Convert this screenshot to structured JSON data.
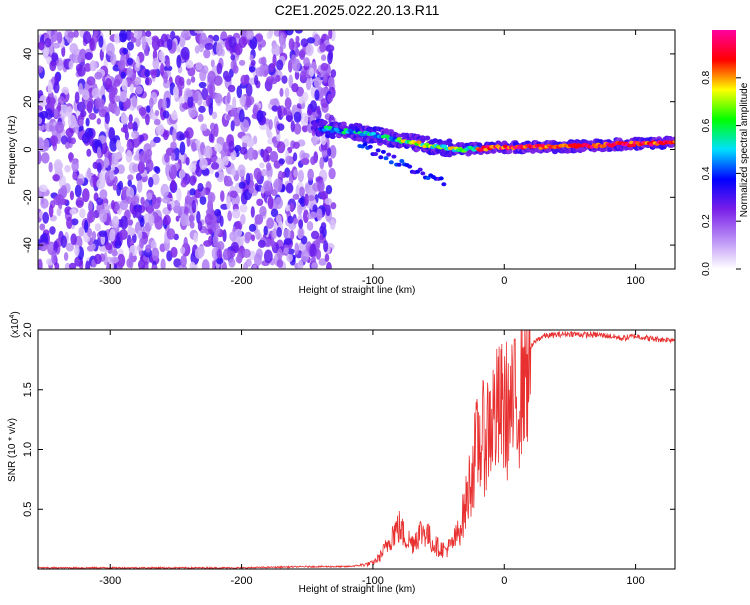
{
  "page": {
    "title": "C2E1.2025.022.20.13.R11"
  },
  "chart_data": [
    {
      "type": "heatmap",
      "title": "C2E1.2025.022.20.13.R11",
      "xlabel": "Height of straight line (km)",
      "ylabel": "Frequency (Hz)",
      "xlim": [
        -355,
        130
      ],
      "ylim": [
        -50,
        50
      ],
      "xticks": [
        {
          "v": -300,
          "label": "-300"
        },
        {
          "v": -200,
          "label": "-200"
        },
        {
          "v": -100,
          "label": "-100"
        },
        {
          "v": 0,
          "label": "0"
        },
        {
          "v": 100,
          "label": "100"
        }
      ],
      "yticks": [
        {
          "v": -40,
          "label": "-40"
        },
        {
          "v": -20,
          "label": "-20"
        },
        {
          "v": 0,
          "label": "0"
        },
        {
          "v": 20,
          "label": "20"
        },
        {
          "v": 40,
          "label": "40"
        }
      ],
      "ridge": [
        {
          "x": -140,
          "y": 9
        },
        {
          "x": -110,
          "y": 7
        },
        {
          "x": -90,
          "y": 5
        },
        {
          "x": -70,
          "y": 3
        },
        {
          "x": -50,
          "y": 1
        },
        {
          "x": -30,
          "y": 0
        },
        {
          "x": 0,
          "y": 1
        },
        {
          "x": 40,
          "y": 1
        },
        {
          "x": 80,
          "y": 2
        },
        {
          "x": 130,
          "y": 3
        }
      ],
      "colorbar": {
        "label": "Normalized spectral amplitude",
        "range": [
          0,
          1
        ],
        "ticks": [
          {
            "v": 0.0,
            "label": "0.0"
          },
          {
            "v": 0.2,
            "label": "0.2"
          },
          {
            "v": 0.4,
            "label": "0.4"
          },
          {
            "v": 0.6,
            "label": "0.6"
          },
          {
            "v": 0.8,
            "label": "0.8"
          }
        ],
        "colors": [
          "#ffffff",
          "#b98ef5",
          "#7a1fe8",
          "#0000ff",
          "#00e0ff",
          "#00ff00",
          "#ffff00",
          "#ff0000",
          "#ff00a0"
        ]
      },
      "grid": false
    },
    {
      "type": "line",
      "xlabel": "Height of straight line (km)",
      "ylabel": "SNR (10 * v/v)",
      "y_multiplier_label": "(x10",
      "y_multiplier_exp": "4",
      "y_multiplier_close": ")",
      "xlim": [
        -355,
        130
      ],
      "ylim": [
        0,
        2.0
      ],
      "xticks": [
        {
          "v": -300,
          "label": "-300"
        },
        {
          "v": -200,
          "label": "-200"
        },
        {
          "v": -100,
          "label": "-100"
        },
        {
          "v": 0,
          "label": "0"
        },
        {
          "v": 100,
          "label": "100"
        }
      ],
      "yticks": [
        {
          "v": 0.5,
          "label": "0.5"
        },
        {
          "v": 1.0,
          "label": "1.0"
        },
        {
          "v": 1.5,
          "label": "1.5"
        },
        {
          "v": 2.0,
          "label": "2.0"
        }
      ],
      "color": "#e83030",
      "series": [
        {
          "x": [
            -355,
            -300,
            -250,
            -200,
            -150,
            -120,
            -110,
            -100,
            -95,
            -90,
            -85,
            -80,
            -75,
            -70,
            -65,
            -60,
            -55,
            -50,
            -45,
            -40,
            -35,
            -30,
            -25,
            -20,
            -15,
            -10,
            -5,
            0,
            5,
            10,
            15,
            20,
            25,
            30,
            40,
            50,
            60,
            70,
            80,
            90,
            100,
            110,
            120,
            130
          ],
          "y": [
            0.01,
            0.01,
            0.01,
            0.01,
            0.02,
            0.02,
            0.03,
            0.05,
            0.1,
            0.18,
            0.3,
            0.35,
            0.26,
            0.22,
            0.3,
            0.32,
            0.22,
            0.18,
            0.16,
            0.2,
            0.3,
            0.5,
            0.8,
            1.05,
            1.1,
            1.25,
            1.3,
            1.35,
            1.3,
            1.4,
            1.75,
            1.85,
            1.92,
            1.95,
            1.96,
            1.97,
            1.96,
            1.96,
            1.95,
            1.93,
            1.95,
            1.93,
            1.92,
            1.92
          ]
        }
      ],
      "grid": false
    }
  ]
}
